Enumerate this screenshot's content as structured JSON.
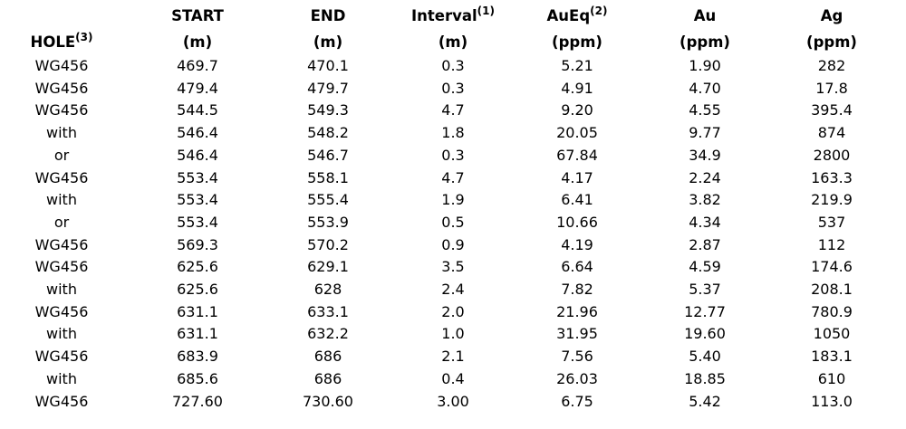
{
  "table": {
    "headers": [
      {
        "label": "HOLE",
        "sup": "(3)"
      },
      {
        "label": "START",
        "unit": "(m)"
      },
      {
        "label": "END",
        "unit": "(m)"
      },
      {
        "label": "Interval",
        "sup": "(1)",
        "unit": "(m)"
      },
      {
        "label": "AuEq",
        "sup": "(2)",
        "unit": "(ppm)"
      },
      {
        "label": "Au",
        "unit": "(ppm)"
      },
      {
        "label": "Ag",
        "unit": "(ppm)"
      }
    ],
    "rows": [
      [
        "WG456",
        "469.7",
        "470.1",
        "0.3",
        "5.21",
        "1.90",
        "282"
      ],
      [
        "WG456",
        "479.4",
        "479.7",
        "0.3",
        "4.91",
        "4.70",
        "17.8"
      ],
      [
        "WG456",
        "544.5",
        "549.3",
        "4.7",
        "9.20",
        "4.55",
        "395.4"
      ],
      [
        "with",
        "546.4",
        "548.2",
        "1.8",
        "20.05",
        "9.77",
        "874"
      ],
      [
        "or",
        "546.4",
        "546.7",
        "0.3",
        "67.84",
        "34.9",
        "2800"
      ],
      [
        "WG456",
        "553.4",
        "558.1",
        "4.7",
        "4.17",
        "2.24",
        "163.3"
      ],
      [
        "with",
        "553.4",
        "555.4",
        "1.9",
        "6.41",
        "3.82",
        "219.9"
      ],
      [
        "or",
        "553.4",
        "553.9",
        "0.5",
        "10.66",
        "4.34",
        "537"
      ],
      [
        "WG456",
        "569.3",
        "570.2",
        "0.9",
        "4.19",
        "2.87",
        "112"
      ],
      [
        "WG456",
        "625.6",
        "629.1",
        "3.5",
        "6.64",
        "4.59",
        "174.6"
      ],
      [
        "with",
        "625.6",
        "628",
        "2.4",
        "7.82",
        "5.37",
        "208.1"
      ],
      [
        "WG456",
        "631.1",
        "633.1",
        "2.0",
        "21.96",
        "12.77",
        "780.9"
      ],
      [
        "with",
        "631.1",
        "632.2",
        "1.0",
        "31.95",
        "19.60",
        "1050"
      ],
      [
        "WG456",
        "683.9",
        "686",
        "2.1",
        "7.56",
        "5.40",
        "183.1"
      ],
      [
        "with",
        "685.6",
        "686",
        "0.4",
        "26.03",
        "18.85",
        "610"
      ],
      [
        "WG456",
        "727.60",
        "730.60",
        "3.00",
        "6.75",
        "5.42",
        "113.0"
      ]
    ]
  }
}
